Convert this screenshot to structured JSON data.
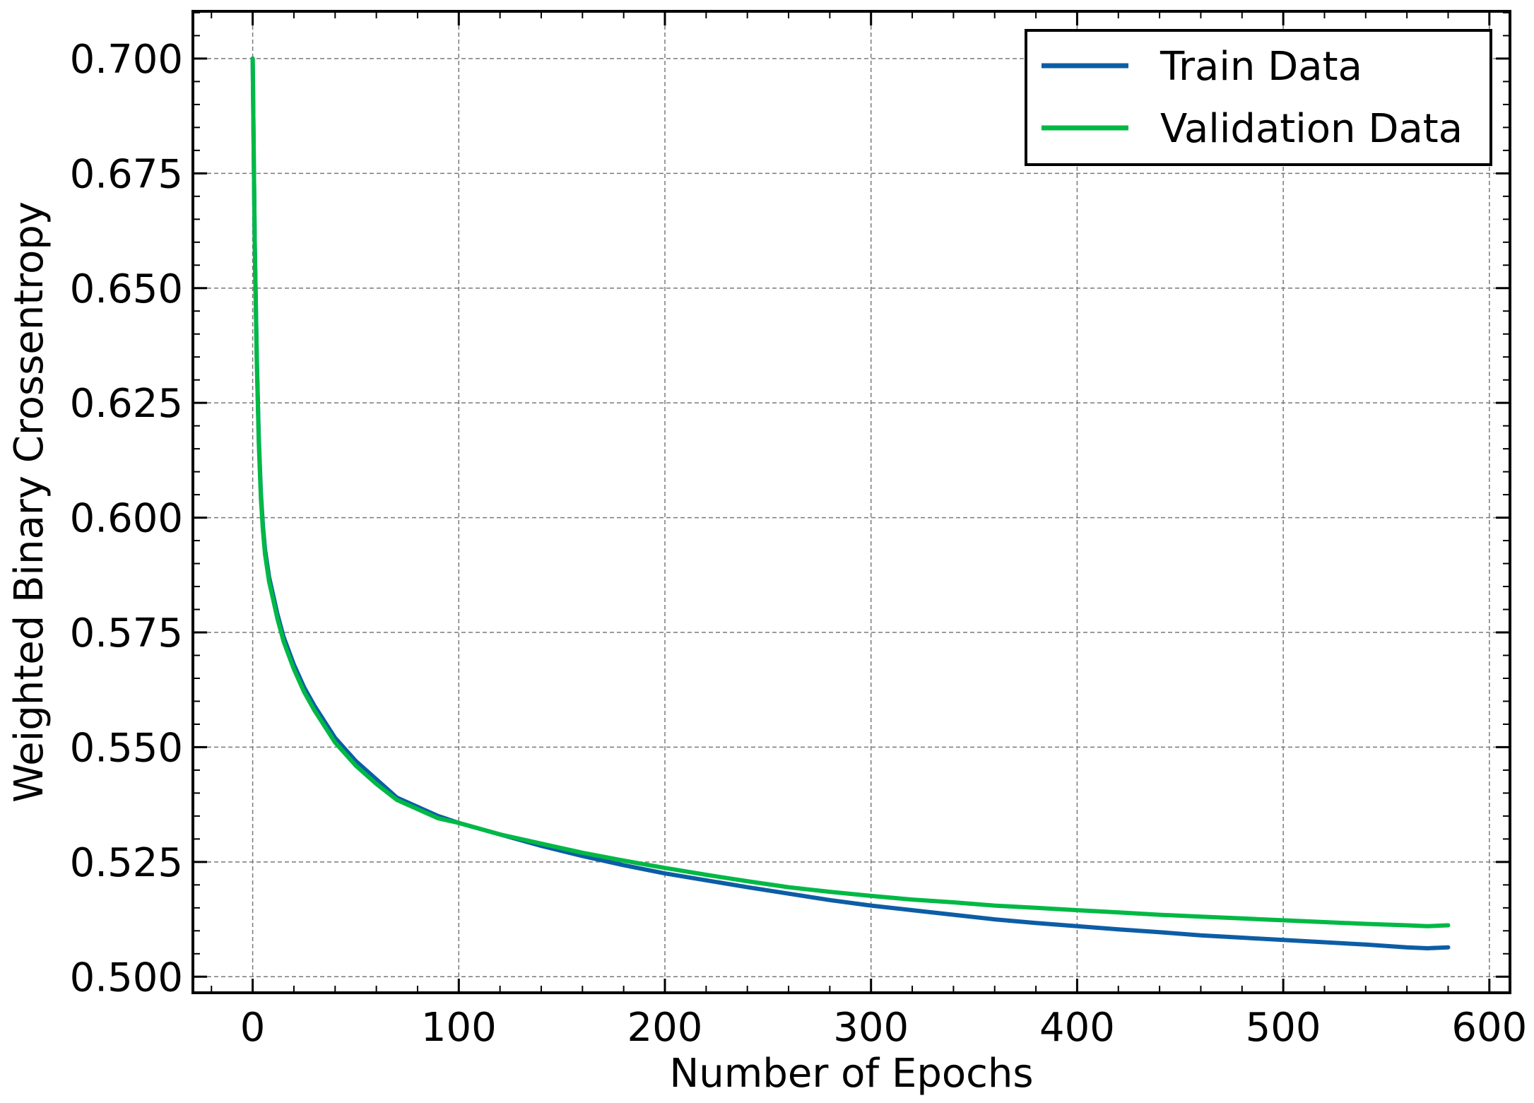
{
  "chart_data": {
    "type": "line",
    "title": "",
    "xlabel": "Number of Epochs",
    "ylabel": "Weighted Binary Crossentropy",
    "xlim": [
      -29,
      610
    ],
    "ylim": [
      0.4965,
      0.7103
    ],
    "xticks": [
      0,
      100,
      200,
      300,
      400,
      500,
      600
    ],
    "xtick_labels": [
      "0",
      "100",
      "200",
      "300",
      "400",
      "500",
      "600"
    ],
    "yticks": [
      0.5,
      0.525,
      0.55,
      0.575,
      0.6,
      0.625,
      0.65,
      0.675,
      0.7
    ],
    "ytick_labels": [
      "0.500",
      "0.525",
      "0.550",
      "0.575",
      "0.600",
      "0.625",
      "0.650",
      "0.675",
      "0.700"
    ],
    "grid": true,
    "legend_position": "top-right",
    "series": [
      {
        "name": "Train Data",
        "color": "#0C5DA5",
        "x": [
          0,
          1,
          2,
          3,
          4,
          5,
          6,
          8,
          10,
          12,
          15,
          20,
          25,
          30,
          40,
          50,
          60,
          70,
          80,
          90,
          100,
          120,
          140,
          160,
          180,
          200,
          220,
          240,
          260,
          280,
          300,
          320,
          340,
          360,
          380,
          400,
          420,
          440,
          460,
          480,
          500,
          520,
          540,
          560,
          570,
          580
        ],
        "y": [
          0.7,
          0.66,
          0.635,
          0.617,
          0.605,
          0.598,
          0.593,
          0.587,
          0.583,
          0.579,
          0.574,
          0.568,
          0.563,
          0.559,
          0.552,
          0.547,
          0.543,
          0.539,
          0.537,
          0.535,
          0.5335,
          0.531,
          0.5285,
          0.5263,
          0.5243,
          0.5225,
          0.521,
          0.5195,
          0.5181,
          0.5167,
          0.5155,
          0.5145,
          0.5135,
          0.5125,
          0.5117,
          0.511,
          0.5103,
          0.5097,
          0.509,
          0.5085,
          0.508,
          0.5075,
          0.507,
          0.5064,
          0.5062,
          0.5064
        ]
      },
      {
        "name": "Validation Data",
        "color": "#00B945",
        "x": [
          0,
          1,
          2,
          3,
          4,
          5,
          6,
          8,
          10,
          12,
          15,
          20,
          25,
          30,
          40,
          50,
          60,
          70,
          80,
          90,
          100,
          120,
          140,
          160,
          180,
          200,
          220,
          240,
          260,
          280,
          300,
          320,
          340,
          360,
          380,
          400,
          420,
          440,
          460,
          480,
          500,
          520,
          540,
          560,
          570,
          580
        ],
        "y": [
          0.7,
          0.66,
          0.634,
          0.616,
          0.604,
          0.597,
          0.592,
          0.586,
          0.582,
          0.578,
          0.573,
          0.567,
          0.562,
          0.558,
          0.551,
          0.546,
          0.542,
          0.5385,
          0.5365,
          0.5345,
          0.5335,
          0.531,
          0.529,
          0.527,
          0.5253,
          0.5237,
          0.5222,
          0.5208,
          0.5195,
          0.5185,
          0.5176,
          0.5168,
          0.5162,
          0.5155,
          0.515,
          0.5145,
          0.514,
          0.5135,
          0.5131,
          0.5127,
          0.5123,
          0.5119,
          0.5115,
          0.5112,
          0.511,
          0.5112
        ]
      }
    ]
  }
}
